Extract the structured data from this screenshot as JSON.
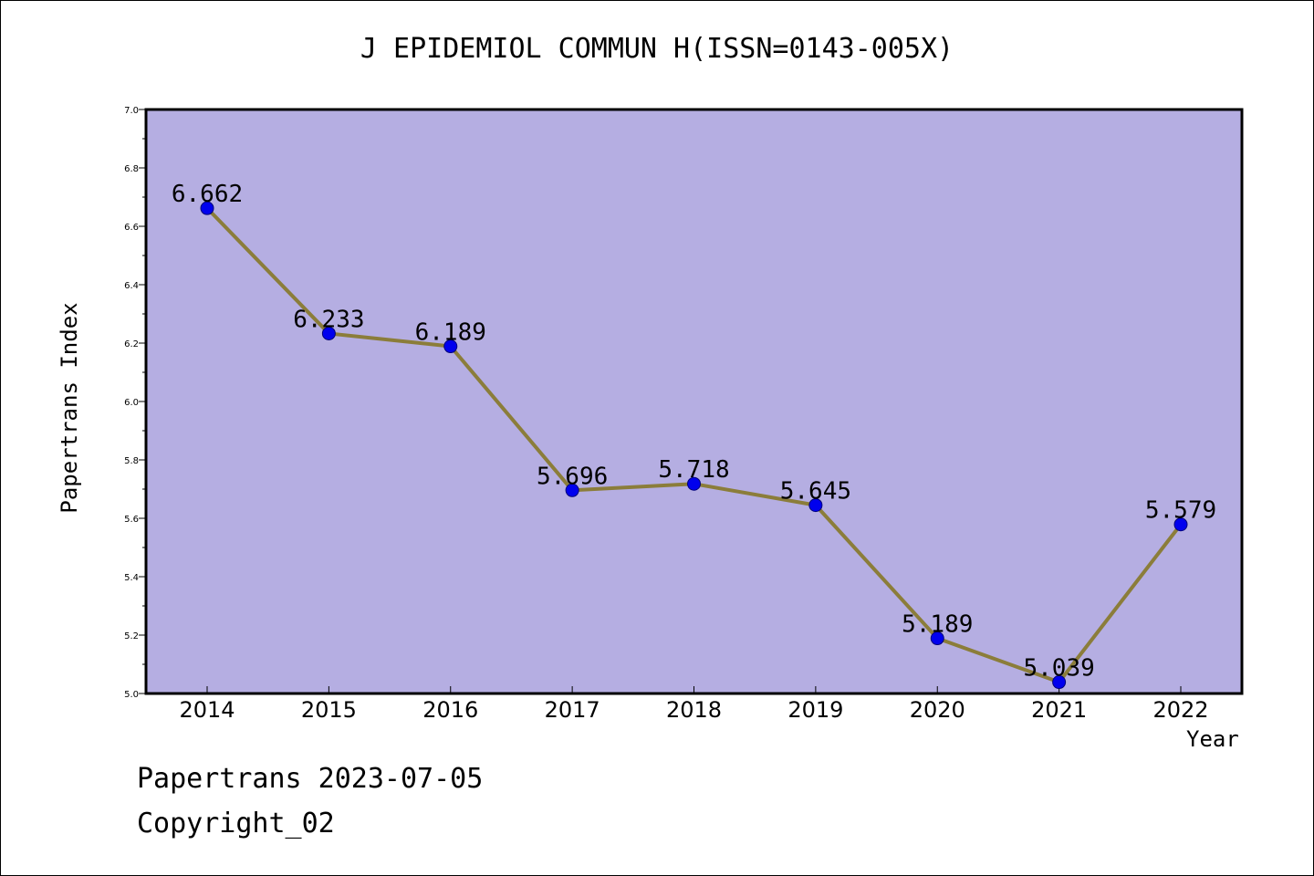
{
  "chart_data": {
    "type": "line",
    "title": "J EPIDEMIOL COMMUN H(ISSN=0143-005X)",
    "xlabel": "Year",
    "ylabel": "Papertrans Index",
    "categories": [
      "2014",
      "2015",
      "2016",
      "2017",
      "2018",
      "2019",
      "2020",
      "2021",
      "2022"
    ],
    "values": [
      6.662,
      6.233,
      6.189,
      5.696,
      5.718,
      5.645,
      5.189,
      5.039,
      5.579
    ],
    "data_labels": [
      "6.662",
      "6.233",
      "6.189",
      "5.696",
      "5.718",
      "5.645",
      "5.189",
      "5.039",
      "5.579"
    ],
    "ylim": [
      5.0,
      7.0
    ],
    "yticks": [
      "5.0",
      "5.2",
      "5.4",
      "5.6",
      "5.8",
      "6.0",
      "6.2",
      "6.4",
      "6.6",
      "6.8",
      "7.0"
    ],
    "grid": false,
    "legend": "none",
    "colors": {
      "plot_background": "#b5aee2",
      "line": "#8b7d3a",
      "marker": "#0000ee"
    }
  },
  "footer": {
    "line1": "Papertrans 2023-07-05",
    "line2": "Copyright_02"
  }
}
